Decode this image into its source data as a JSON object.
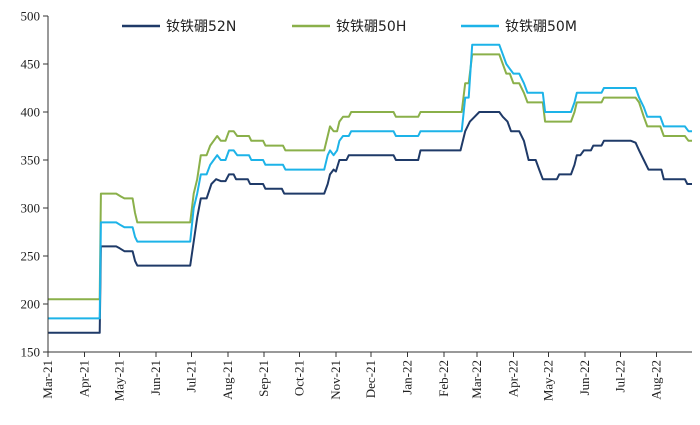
{
  "chart_data": {
    "type": "line",
    "title": "",
    "xlabel": "",
    "ylabel": "",
    "ylim": [
      150,
      500
    ],
    "y_ticks": [
      150,
      200,
      250,
      300,
      350,
      400,
      450,
      500
    ],
    "x_ticks": [
      "Mar-21",
      "Apr-21",
      "May-21",
      "Jun-21",
      "Jul-21",
      "Aug-21",
      "Sep-21",
      "Oct-21",
      "Nov-21",
      "Dec-21",
      "Jan-22",
      "Feb-22",
      "Mar-22",
      "Apr-22",
      "May-22",
      "Jun-22",
      "Jul-22",
      "Aug-22"
    ],
    "x_range": [
      "2021-03-01",
      "2022-08-31"
    ],
    "grid": false,
    "legend_position": "top",
    "series": [
      {
        "name": "钕铁硼52N",
        "color": "#1f3a68",
        "points": [
          [
            "2021-03-01",
            170
          ],
          [
            "2021-04-14",
            170
          ],
          [
            "2021-04-15",
            260
          ],
          [
            "2021-04-28",
            260
          ],
          [
            "2021-05-01",
            258
          ],
          [
            "2021-05-05",
            255
          ],
          [
            "2021-05-12",
            255
          ],
          [
            "2021-05-14",
            245
          ],
          [
            "2021-05-16",
            240
          ],
          [
            "2021-06-30",
            240
          ],
          [
            "2021-07-03",
            265
          ],
          [
            "2021-07-06",
            290
          ],
          [
            "2021-07-09",
            310
          ],
          [
            "2021-07-14",
            310
          ],
          [
            "2021-07-18",
            325
          ],
          [
            "2021-07-22",
            330
          ],
          [
            "2021-07-26",
            328
          ],
          [
            "2021-07-30",
            328
          ],
          [
            "2021-08-02",
            335
          ],
          [
            "2021-08-06",
            335
          ],
          [
            "2021-08-08",
            330
          ],
          [
            "2021-08-18",
            330
          ],
          [
            "2021-08-20",
            325
          ],
          [
            "2021-08-31",
            325
          ],
          [
            "2021-09-02",
            320
          ],
          [
            "2021-09-16",
            320
          ],
          [
            "2021-09-18",
            315
          ],
          [
            "2021-10-22",
            315
          ],
          [
            "2021-10-25",
            325
          ],
          [
            "2021-10-27",
            335
          ],
          [
            "2021-10-30",
            340
          ],
          [
            "2021-11-01",
            338
          ],
          [
            "2021-11-04",
            350
          ],
          [
            "2021-11-10",
            350
          ],
          [
            "2021-11-12",
            355
          ],
          [
            "2021-12-20",
            355
          ],
          [
            "2021-12-22",
            350
          ],
          [
            "2022-01-10",
            350
          ],
          [
            "2022-01-12",
            360
          ],
          [
            "2022-02-15",
            360
          ],
          [
            "2022-02-19",
            380
          ],
          [
            "2022-02-23",
            390
          ],
          [
            "2022-02-27",
            395
          ],
          [
            "2022-03-03",
            400
          ],
          [
            "2022-03-20",
            400
          ],
          [
            "2022-03-23",
            395
          ],
          [
            "2022-03-27",
            390
          ],
          [
            "2022-03-30",
            380
          ],
          [
            "2022-04-06",
            380
          ],
          [
            "2022-04-10",
            370
          ],
          [
            "2022-04-14",
            350
          ],
          [
            "2022-04-20",
            350
          ],
          [
            "2022-04-23",
            340
          ],
          [
            "2022-04-26",
            330
          ],
          [
            "2022-05-08",
            330
          ],
          [
            "2022-05-10",
            335
          ],
          [
            "2022-05-20",
            335
          ],
          [
            "2022-05-23",
            345
          ],
          [
            "2022-05-25",
            355
          ],
          [
            "2022-05-28",
            355
          ],
          [
            "2022-05-31",
            360
          ],
          [
            "2022-06-06",
            360
          ],
          [
            "2022-06-08",
            365
          ],
          [
            "2022-06-15",
            365
          ],
          [
            "2022-06-17",
            370
          ],
          [
            "2022-07-10",
            370
          ],
          [
            "2022-07-14",
            368
          ],
          [
            "2022-07-17",
            360
          ],
          [
            "2022-07-21",
            350
          ],
          [
            "2022-07-25",
            340
          ],
          [
            "2022-08-05",
            340
          ],
          [
            "2022-08-07",
            330
          ],
          [
            "2022-08-25",
            330
          ],
          [
            "2022-08-27",
            325
          ],
          [
            "2022-08-31",
            325
          ]
        ]
      },
      {
        "name": "钕铁硼50H",
        "color": "#8ab04a",
        "points": [
          [
            "2021-03-01",
            205
          ],
          [
            "2021-04-14",
            205
          ],
          [
            "2021-04-15",
            315
          ],
          [
            "2021-04-28",
            315
          ],
          [
            "2021-05-02",
            312
          ],
          [
            "2021-05-05",
            310
          ],
          [
            "2021-05-12",
            310
          ],
          [
            "2021-05-14",
            295
          ],
          [
            "2021-05-16",
            285
          ],
          [
            "2021-06-30",
            285
          ],
          [
            "2021-07-03",
            315
          ],
          [
            "2021-07-06",
            330
          ],
          [
            "2021-07-09",
            355
          ],
          [
            "2021-07-14",
            355
          ],
          [
            "2021-07-17",
            365
          ],
          [
            "2021-07-20",
            370
          ],
          [
            "2021-07-23",
            375
          ],
          [
            "2021-07-26",
            370
          ],
          [
            "2021-07-30",
            370
          ],
          [
            "2021-08-02",
            380
          ],
          [
            "2021-08-06",
            380
          ],
          [
            "2021-08-09",
            375
          ],
          [
            "2021-08-19",
            375
          ],
          [
            "2021-08-21",
            370
          ],
          [
            "2021-08-31",
            370
          ],
          [
            "2021-09-02",
            365
          ],
          [
            "2021-09-17",
            365
          ],
          [
            "2021-09-19",
            360
          ],
          [
            "2021-10-22",
            360
          ],
          [
            "2021-10-25",
            375
          ],
          [
            "2021-10-27",
            385
          ],
          [
            "2021-10-30",
            380
          ],
          [
            "2021-11-02",
            380
          ],
          [
            "2021-11-04",
            390
          ],
          [
            "2021-11-07",
            395
          ],
          [
            "2021-11-12",
            395
          ],
          [
            "2021-11-14",
            400
          ],
          [
            "2021-12-20",
            400
          ],
          [
            "2021-12-22",
            395
          ],
          [
            "2022-01-10",
            395
          ],
          [
            "2022-01-12",
            400
          ],
          [
            "2022-02-16",
            400
          ],
          [
            "2022-02-19",
            430
          ],
          [
            "2022-02-22",
            430
          ],
          [
            "2022-02-25",
            460
          ],
          [
            "2022-03-20",
            460
          ],
          [
            "2022-03-23",
            450
          ],
          [
            "2022-03-26",
            440
          ],
          [
            "2022-03-29",
            440
          ],
          [
            "2022-04-01",
            430
          ],
          [
            "2022-04-06",
            430
          ],
          [
            "2022-04-10",
            420
          ],
          [
            "2022-04-13",
            410
          ],
          [
            "2022-04-26",
            410
          ],
          [
            "2022-04-28",
            390
          ],
          [
            "2022-05-20",
            390
          ],
          [
            "2022-05-23",
            400
          ],
          [
            "2022-05-25",
            410
          ],
          [
            "2022-06-15",
            410
          ],
          [
            "2022-06-17",
            415
          ],
          [
            "2022-07-14",
            415
          ],
          [
            "2022-07-17",
            410
          ],
          [
            "2022-07-21",
            395
          ],
          [
            "2022-07-24",
            385
          ],
          [
            "2022-08-04",
            385
          ],
          [
            "2022-08-07",
            375
          ],
          [
            "2022-08-25",
            375
          ],
          [
            "2022-08-28",
            370
          ],
          [
            "2022-08-31",
            370
          ]
        ]
      },
      {
        "name": "钕铁硼50M",
        "color": "#1db3e8",
        "points": [
          [
            "2021-03-01",
            185
          ],
          [
            "2021-04-14",
            185
          ],
          [
            "2021-04-15",
            285
          ],
          [
            "2021-04-28",
            285
          ],
          [
            "2021-05-02",
            282
          ],
          [
            "2021-05-05",
            280
          ],
          [
            "2021-05-12",
            280
          ],
          [
            "2021-05-14",
            270
          ],
          [
            "2021-05-16",
            265
          ],
          [
            "2021-06-30",
            265
          ],
          [
            "2021-07-03",
            300
          ],
          [
            "2021-07-06",
            315
          ],
          [
            "2021-07-09",
            335
          ],
          [
            "2021-07-14",
            335
          ],
          [
            "2021-07-17",
            345
          ],
          [
            "2021-07-20",
            350
          ],
          [
            "2021-07-23",
            355
          ],
          [
            "2021-07-26",
            350
          ],
          [
            "2021-07-30",
            350
          ],
          [
            "2021-08-02",
            360
          ],
          [
            "2021-08-06",
            360
          ],
          [
            "2021-08-09",
            355
          ],
          [
            "2021-08-19",
            355
          ],
          [
            "2021-08-21",
            350
          ],
          [
            "2021-08-31",
            350
          ],
          [
            "2021-09-02",
            345
          ],
          [
            "2021-09-17",
            345
          ],
          [
            "2021-09-19",
            340
          ],
          [
            "2021-10-22",
            340
          ],
          [
            "2021-10-25",
            355
          ],
          [
            "2021-10-27",
            360
          ],
          [
            "2021-10-30",
            355
          ],
          [
            "2021-11-02",
            360
          ],
          [
            "2021-11-04",
            370
          ],
          [
            "2021-11-07",
            375
          ],
          [
            "2021-11-12",
            375
          ],
          [
            "2021-11-14",
            380
          ],
          [
            "2021-12-20",
            380
          ],
          [
            "2021-12-22",
            375
          ],
          [
            "2022-01-10",
            375
          ],
          [
            "2022-01-12",
            380
          ],
          [
            "2022-02-16",
            380
          ],
          [
            "2022-02-19",
            415
          ],
          [
            "2022-02-22",
            415
          ],
          [
            "2022-02-25",
            470
          ],
          [
            "2022-03-20",
            470
          ],
          [
            "2022-03-23",
            460
          ],
          [
            "2022-03-26",
            450
          ],
          [
            "2022-03-29",
            445
          ],
          [
            "2022-04-01",
            440
          ],
          [
            "2022-04-06",
            440
          ],
          [
            "2022-04-10",
            430
          ],
          [
            "2022-04-13",
            420
          ],
          [
            "2022-04-26",
            420
          ],
          [
            "2022-04-28",
            400
          ],
          [
            "2022-05-20",
            400
          ],
          [
            "2022-05-23",
            410
          ],
          [
            "2022-05-25",
            420
          ],
          [
            "2022-06-15",
            420
          ],
          [
            "2022-06-17",
            425
          ],
          [
            "2022-07-14",
            425
          ],
          [
            "2022-07-17",
            415
          ],
          [
            "2022-07-21",
            405
          ],
          [
            "2022-07-24",
            395
          ],
          [
            "2022-08-04",
            395
          ],
          [
            "2022-08-07",
            385
          ],
          [
            "2022-08-25",
            385
          ],
          [
            "2022-08-28",
            380
          ],
          [
            "2022-08-31",
            380
          ]
        ]
      }
    ]
  }
}
